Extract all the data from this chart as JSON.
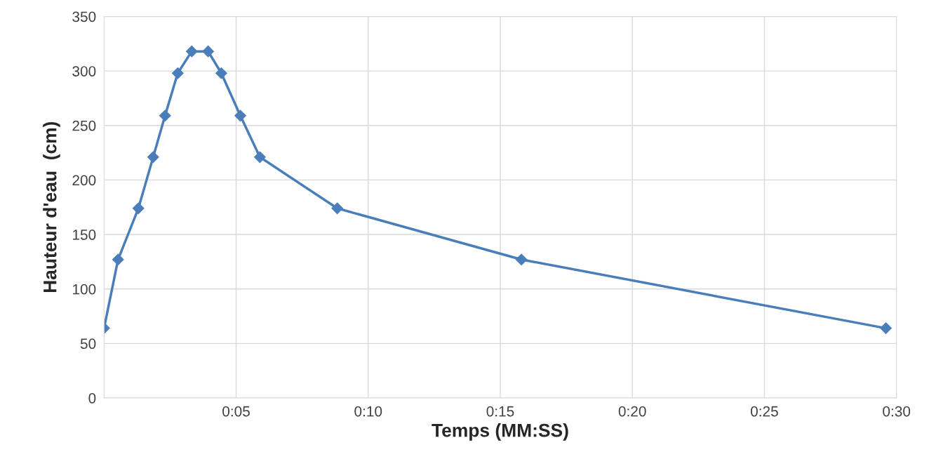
{
  "chart_data": {
    "type": "line",
    "xlabel": "Temps (MM:SS)",
    "ylabel": "Hauteur d'eau  (cm)",
    "x": [
      0,
      0.53,
      1.3,
      1.86,
      2.31,
      2.79,
      3.32,
      3.94,
      4.44,
      5.16,
      5.9,
      8.83,
      15.8,
      29.6
    ],
    "series": [
      {
        "color": "#4a7ebb",
        "values": [
          64,
          127,
          174,
          221,
          259,
          298,
          318,
          318,
          298,
          259,
          221,
          174,
          127,
          64
        ]
      }
    ],
    "xlim": [
      0,
      30
    ],
    "xticks": [
      {
        "value": 5,
        "label": "0:05"
      },
      {
        "value": 10,
        "label": "0:10"
      },
      {
        "value": 15,
        "label": "0:15"
      },
      {
        "value": 20,
        "label": "0:20"
      },
      {
        "value": 25,
        "label": "0:25"
      },
      {
        "value": 30,
        "label": "0:30"
      }
    ],
    "ylim": [
      0,
      350
    ],
    "yticks": [
      0,
      50,
      100,
      150,
      200,
      250,
      300,
      350
    ],
    "grid": true,
    "marker": "diamond",
    "line_style": "solid"
  }
}
